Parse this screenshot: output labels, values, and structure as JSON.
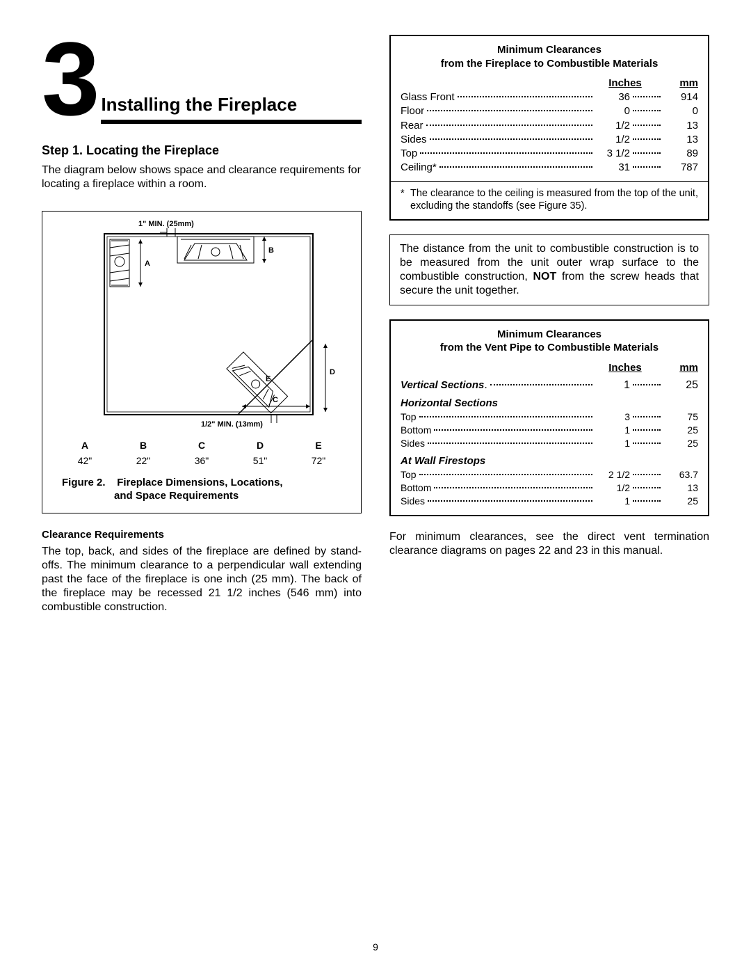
{
  "section_number": "3",
  "section_title": "Installing the Fireplace",
  "step_title": "Step 1.    Locating the Fireplace",
  "step_intro": "The diagram below shows space and clearance requirements for locating a fireplace within a room.",
  "diagram": {
    "label_top": "1\" MIN. (25mm)",
    "label_bottom": "1/2\" MIN. (13mm)",
    "letters_in_svg": {
      "A": "A",
      "B": "B",
      "C": "C",
      "D": "D",
      "E": "E"
    }
  },
  "dim_table": {
    "headers": [
      "A",
      "B",
      "C",
      "D",
      "E"
    ],
    "values": [
      "42\"",
      "22\"",
      "36\"",
      "51\"",
      "72\""
    ]
  },
  "figure_caption_prefix": "Figure 2.",
  "figure_caption_line1": "Fireplace Dimensions, Locations,",
  "figure_caption_line2": "and Space Requirements",
  "clearance_req_heading": "Clearance Requirements",
  "clearance_req_text": "The top, back, and sides of the fireplace are defined by stand-offs. The minimum clearance to a perpendicular wall extending past the face of the fireplace is one inch (25 mm). The back of the fireplace may be recessed 21 1/2 inches (546 mm) into combustible construction.",
  "table1": {
    "title_line1": "Minimum Clearances",
    "title_line2": "from the Fireplace to Combustible Materials",
    "inches_header": "Inches",
    "mm_header": "mm",
    "rows": [
      {
        "label": "Glass Front",
        "inches": "36",
        "mm": "914"
      },
      {
        "label": "Floor",
        "inches": "0",
        "mm": "0"
      },
      {
        "label": "Rear",
        "inches": "1/2",
        "mm": "13"
      },
      {
        "label": "Sides",
        "inches": "1/2",
        "mm": "13"
      },
      {
        "label": "Top",
        "inches": "3 1/2",
        "mm": "89"
      },
      {
        "label": "Ceiling*",
        "inches": "31",
        "mm": "787"
      }
    ],
    "footnote": "The clearance to the ceiling is measured from the top of the unit, excluding the standoffs (see Figure 35)."
  },
  "note_box_text_1": "The distance from the unit to combustible construction is to be measured from the unit outer wrap surface to the combustible construction, ",
  "note_box_bold": "NOT",
  "note_box_text_2": " from the screw heads that secure the unit together.",
  "table2": {
    "title_line1": "Minimum Clearances",
    "title_line2": "from the Vent Pipe to Combustible Materials",
    "inches_header": "Inches",
    "mm_header": "mm",
    "vertical_label": "Vertical Sections",
    "vertical_row": {
      "inches": "1",
      "mm": "25"
    },
    "horizontal_label": "Horizontal Sections",
    "horizontal_rows": [
      {
        "label": "Top",
        "inches": "3",
        "mm": "75"
      },
      {
        "label": "Bottom",
        "inches": "1",
        "mm": "25"
      },
      {
        "label": "Sides",
        "inches": "1",
        "mm": "25"
      }
    ],
    "firestops_label": "At Wall Firestops",
    "firestops_rows": [
      {
        "label": "Top",
        "inches": "2 1/2",
        "mm": "63.7"
      },
      {
        "label": "Bottom",
        "inches": "1/2",
        "mm": "13"
      },
      {
        "label": "Sides",
        "inches": "1",
        "mm": "25"
      }
    ]
  },
  "closing_text": "For minimum clearances, see the direct vent termination clearance diagrams on pages 22 and 23 in this manual.",
  "page_number": "9",
  "colors": {
    "text": "#000000",
    "background": "#ffffff",
    "border": "#000000"
  }
}
